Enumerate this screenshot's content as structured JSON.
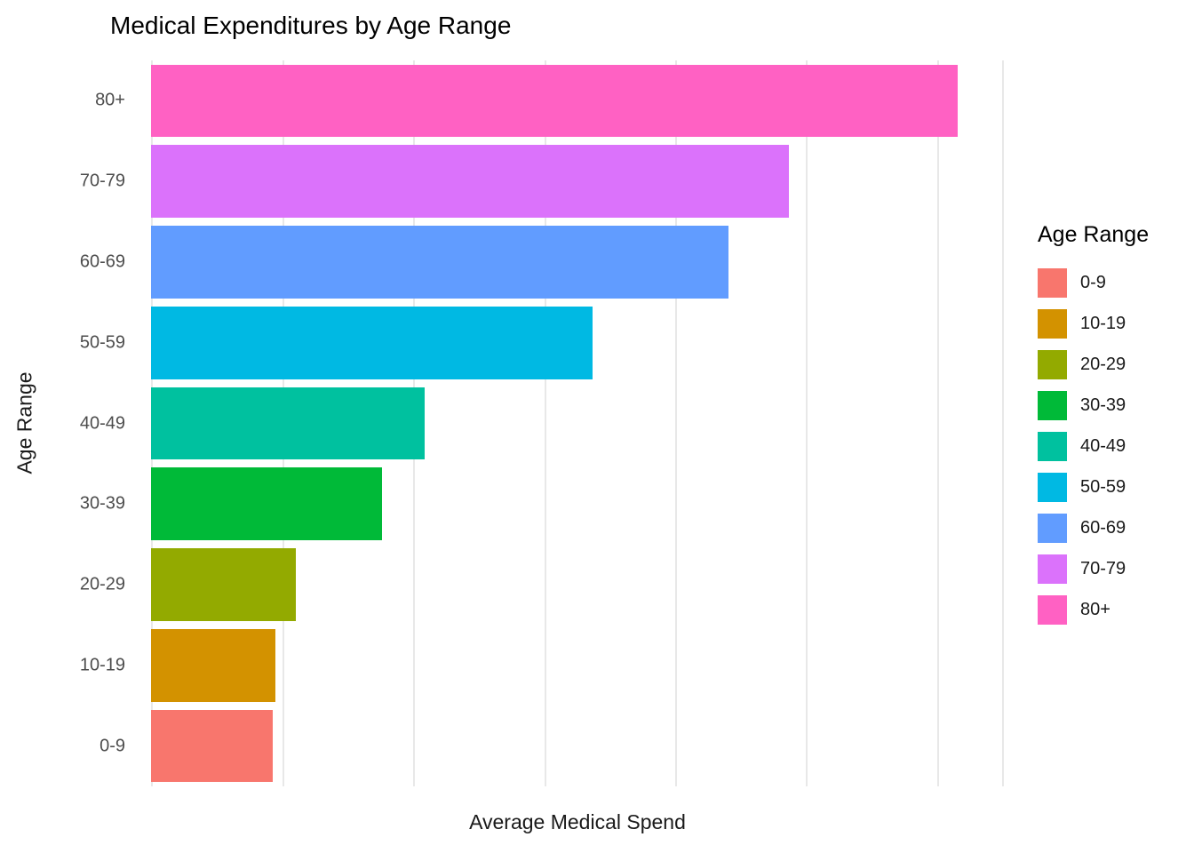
{
  "chart_data": {
    "type": "bar",
    "orientation": "horizontal",
    "title": "Medical Expenditures by Age Range",
    "xlabel": "Average Medical Spend",
    "ylabel": "Age Range",
    "categories_top_to_bottom": [
      "80+",
      "70-79",
      "60-69",
      "50-59",
      "40-49",
      "30-39",
      "20-29",
      "10-19",
      "0-9"
    ],
    "bars": [
      {
        "label": "80+",
        "value": 94.6,
        "color": "#FF61C3"
      },
      {
        "label": "70-79",
        "value": 74.8,
        "color": "#DB72FB"
      },
      {
        "label": "60-69",
        "value": 67.7,
        "color": "#619CFF"
      },
      {
        "label": "50-59",
        "value": 51.8,
        "color": "#00B9E3"
      },
      {
        "label": "40-49",
        "value": 32.1,
        "color": "#00C19F"
      },
      {
        "label": "30-39",
        "value": 27.1,
        "color": "#00BA38"
      },
      {
        "label": "20-29",
        "value": 17.0,
        "color": "#93AA00"
      },
      {
        "label": "10-19",
        "value": 14.6,
        "color": "#D39200"
      },
      {
        "label": "0-9",
        "value": 14.3,
        "color": "#F8766D"
      }
    ],
    "x_axis": {
      "range": [
        0,
        100
      ],
      "tick_labels_visible": false,
      "tick_labels": [],
      "gridline_positions": [
        0,
        15.4,
        30.7,
        46.1,
        61.5,
        76.8,
        92.2,
        99.8
      ],
      "note": "x axis has gridlines but no numeric tick labels; values are relative scale estimates"
    },
    "grid": true,
    "background": "#ffffff",
    "gridline_color": "#e8e8e8",
    "legend": {
      "title": "Age Range",
      "position": "right",
      "entries": [
        {
          "label": "0-9",
          "color": "#F8766D"
        },
        {
          "label": "10-19",
          "color": "#D39200"
        },
        {
          "label": "20-29",
          "color": "#93AA00"
        },
        {
          "label": "30-39",
          "color": "#00BA38"
        },
        {
          "label": "40-49",
          "color": "#00C19F"
        },
        {
          "label": "50-59",
          "color": "#00B9E3"
        },
        {
          "label": "60-69",
          "color": "#619CFF"
        },
        {
          "label": "70-79",
          "color": "#DB72FB"
        },
        {
          "label": "80+",
          "color": "#FF61C3"
        }
      ]
    }
  }
}
